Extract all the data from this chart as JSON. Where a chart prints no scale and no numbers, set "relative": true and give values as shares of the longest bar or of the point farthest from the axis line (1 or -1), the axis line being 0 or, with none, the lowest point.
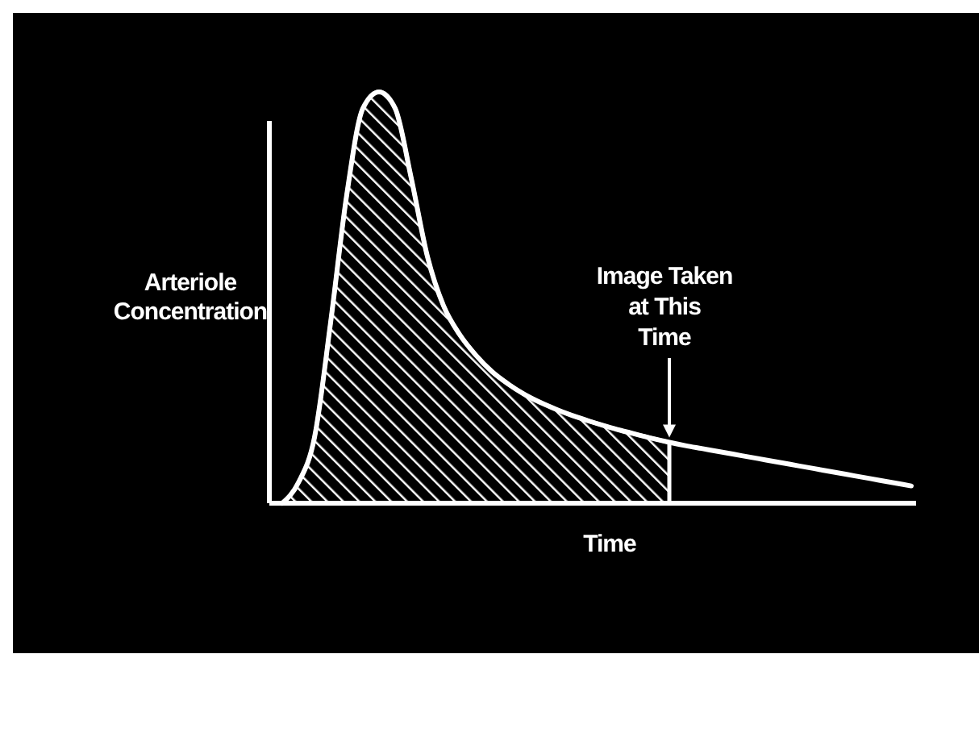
{
  "chart_data": {
    "type": "line",
    "relative": true,
    "xlabel": "Time",
    "ylabel": "Arteriole\nConcentration",
    "categories": [
      null,
      null,
      null,
      null,
      null,
      null,
      null,
      null,
      null,
      null,
      null,
      null,
      null,
      null,
      null,
      null,
      null,
      null,
      null,
      null,
      null,
      null,
      null,
      null,
      null,
      null,
      null,
      null,
      null,
      null,
      null,
      null,
      null,
      null,
      null,
      null,
      null,
      null,
      null,
      null
    ],
    "series": [
      {
        "type": "area",
        "color": "#ffffff",
        "values": [
          0,
          0.05,
          0.16,
          0.44,
          0.75,
          0.96,
          1,
          0.96,
          0.79,
          0.6,
          0.48,
          0.41,
          0.36,
          0.32,
          0.29,
          0.265,
          0.245,
          0.228,
          0.213,
          0.2,
          0.188,
          0.177,
          0.167,
          0.157,
          0.148,
          null,
          null,
          null,
          null,
          null,
          null,
          null,
          null,
          null,
          null,
          null,
          null,
          null,
          null,
          null
        ]
      },
      {
        "color": "#ffffff",
        "values": [
          0,
          0.05,
          0.16,
          0.44,
          0.75,
          0.96,
          1,
          0.96,
          0.79,
          0.6,
          0.48,
          0.41,
          0.36,
          0.32,
          0.29,
          0.265,
          0.245,
          0.228,
          0.213,
          0.2,
          0.188,
          0.177,
          0.167,
          0.157,
          0.148,
          0.14,
          0.133,
          0.126,
          0.119,
          0.112,
          0.105,
          0.098,
          0.091,
          0.084,
          0.077,
          0.07,
          0.063,
          0.056,
          0.049,
          0.042
        ]
      }
    ],
    "annotations": [
      "Image Taken\nat This\nTime"
    ]
  }
}
